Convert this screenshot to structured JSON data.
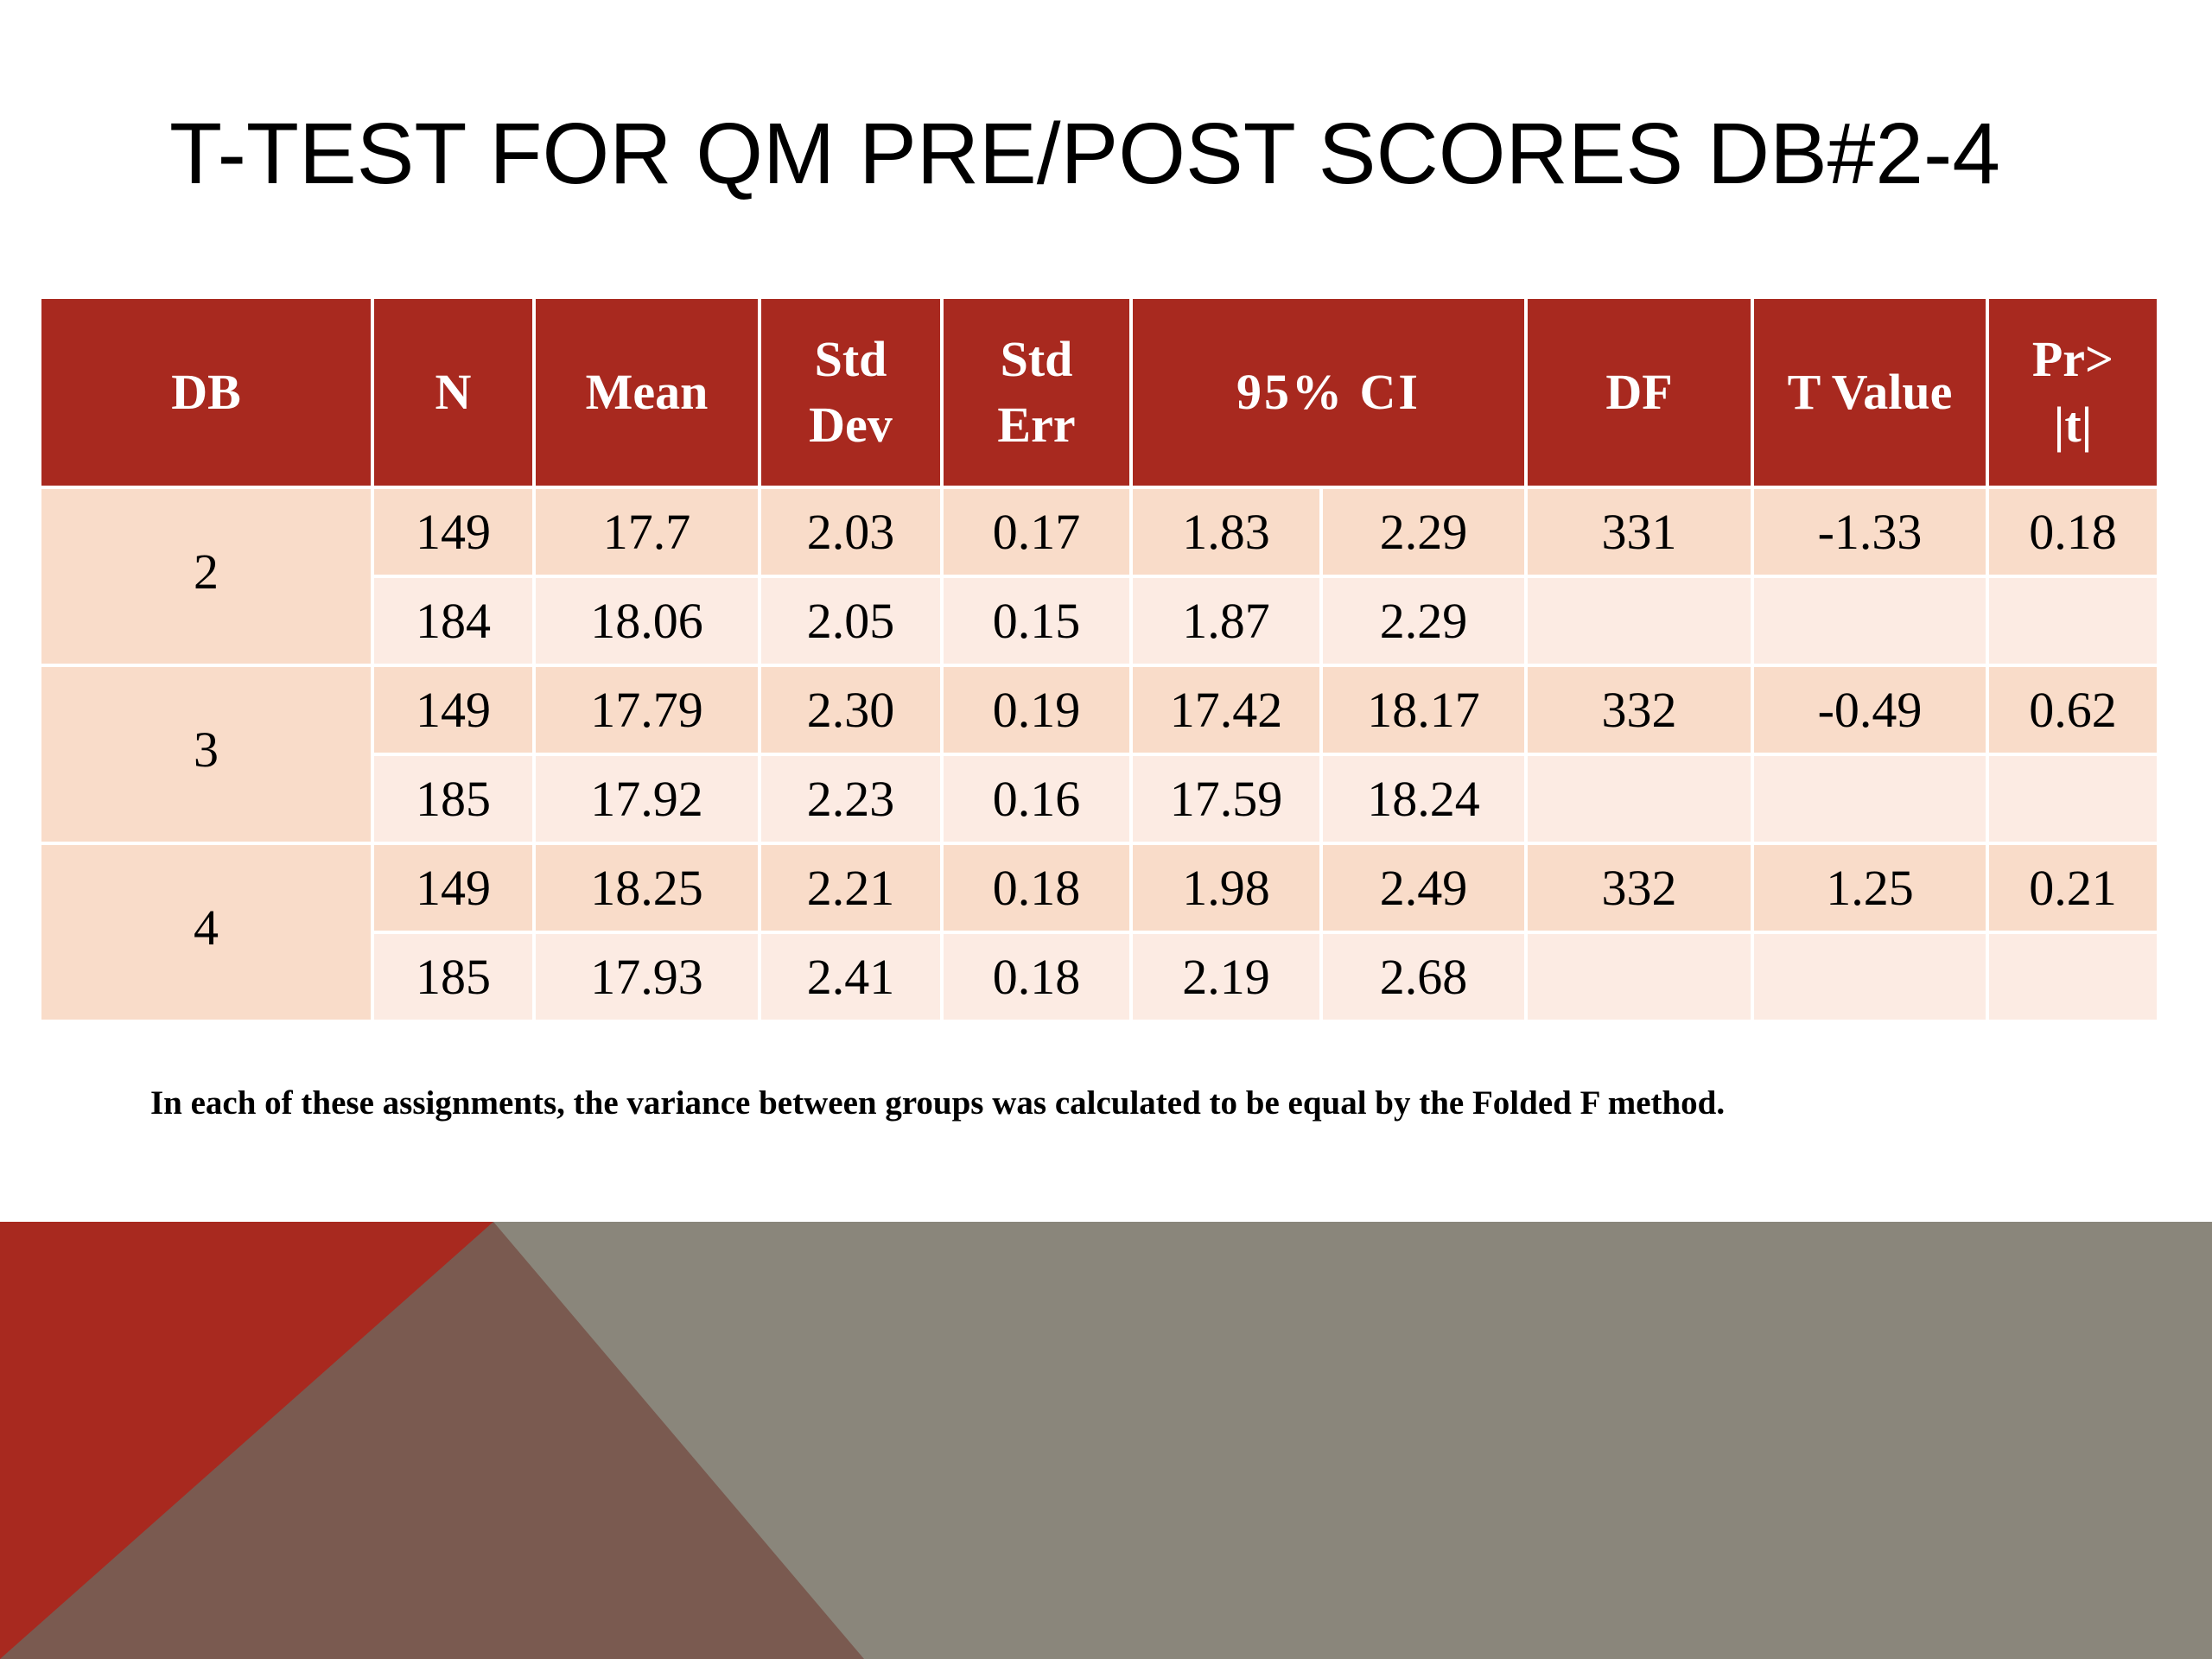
{
  "title": "T-TEST FOR QM PRE/POST SCORES DB#2-4",
  "table": {
    "headers": {
      "db": "DB",
      "n": "N",
      "mean": "Mean",
      "std_dev": [
        "Std",
        "Dev"
      ],
      "std_err": [
        "Std",
        "Err"
      ],
      "ci": "95% CI",
      "df": "DF",
      "t_value": "T Value",
      "pr": [
        "Pr>",
        "|t|"
      ]
    },
    "groups": [
      {
        "db": "2",
        "df": "331",
        "t_value": "-1.33",
        "pr": "0.18",
        "rows": [
          {
            "n": "149",
            "mean": "17.7",
            "std_dev": "2.03",
            "std_err": "0.17",
            "ci_low": "1.83",
            "ci_high": "2.29"
          },
          {
            "n": "184",
            "mean": "18.06",
            "std_dev": "2.05",
            "std_err": "0.15",
            "ci_low": "1.87",
            "ci_high": "2.29"
          }
        ]
      },
      {
        "db": "3",
        "df": "332",
        "t_value": "-0.49",
        "pr": "0.62",
        "rows": [
          {
            "n": "149",
            "mean": "17.79",
            "std_dev": "2.30",
            "std_err": "0.19",
            "ci_low": "17.42",
            "ci_high": "18.17"
          },
          {
            "n": "185",
            "mean": "17.92",
            "std_dev": "2.23",
            "std_err": "0.16",
            "ci_low": "17.59",
            "ci_high": "18.24"
          }
        ]
      },
      {
        "db": "4",
        "df": "332",
        "t_value": "1.25",
        "pr": "0.21",
        "rows": [
          {
            "n": "149",
            "mean": "18.25",
            "std_dev": "2.21",
            "std_err": "0.18",
            "ci_low": "1.98",
            "ci_high": "2.49"
          },
          {
            "n": "185",
            "mean": "17.93",
            "std_dev": "2.41",
            "std_err": "0.18",
            "ci_low": "2.19",
            "ci_high": "2.68"
          }
        ]
      }
    ]
  },
  "footnote": "In each of these assignments, the variance between groups was calculated to be equal by the Folded F method.",
  "colors": {
    "header_red": "#a8291f",
    "row_peach": "#f9dcc9",
    "row_light": "#fcebe3",
    "decor_gray": "#8a867b",
    "decor_red": "#a8291f",
    "decor_brown": "#7a5a50"
  }
}
